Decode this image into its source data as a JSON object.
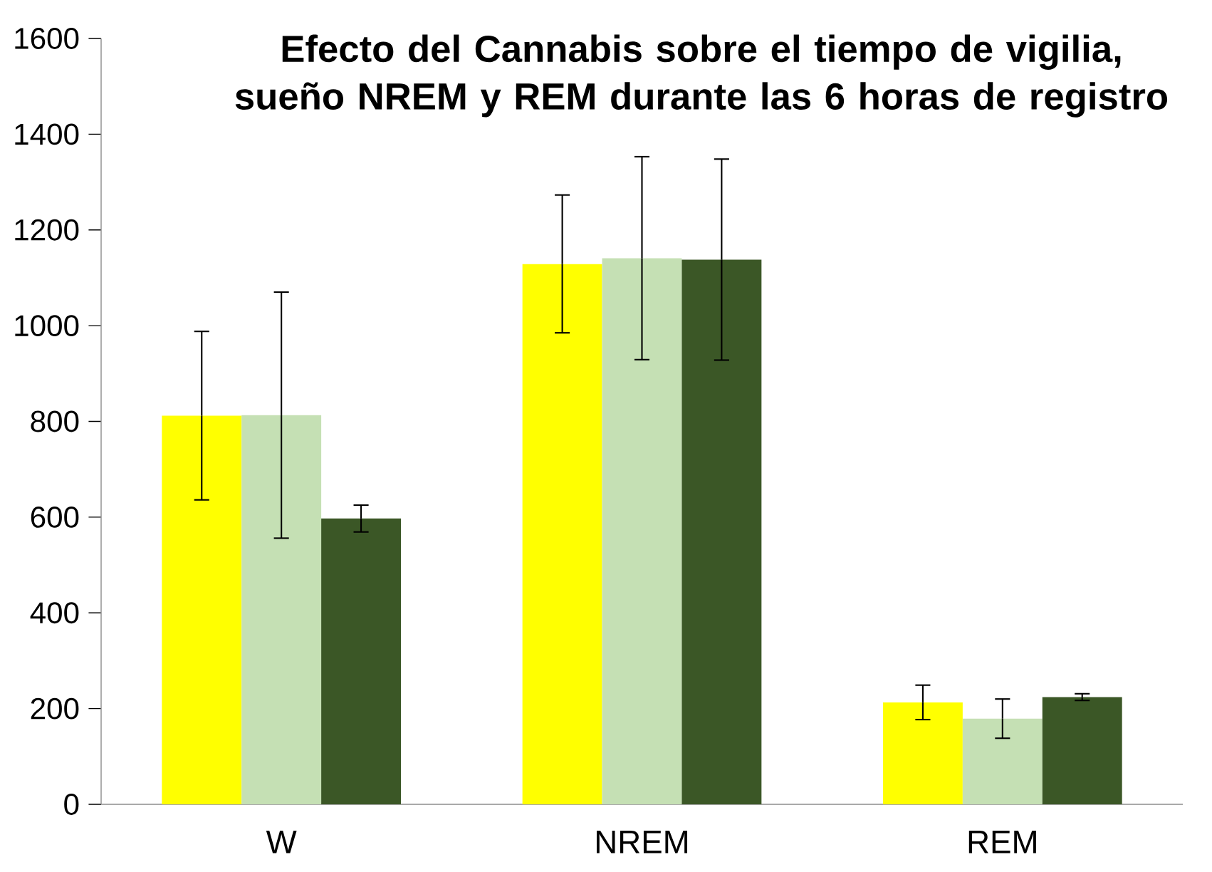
{
  "chart_data": {
    "type": "bar",
    "title": "Efecto del Cannabis sobre el tiempo de vigilia, sueño NREM y REM durante las 6 horas de registro",
    "categories": [
      "W",
      "NREM",
      "REM"
    ],
    "series": [
      {
        "color": "#ffff00",
        "values": [
          812,
          1129,
          213
        ],
        "errors": [
          176,
          144,
          36
        ]
      },
      {
        "color": "#c5e0b4",
        "values": [
          813,
          1141,
          179
        ],
        "errors": [
          257,
          212,
          41
        ]
      },
      {
        "color": "#3b5726",
        "values": [
          597,
          1138,
          224
        ],
        "errors": [
          28,
          210,
          7
        ]
      }
    ],
    "ylim": [
      0,
      1600
    ],
    "yticks": [
      0,
      200,
      400,
      600,
      800,
      1000,
      1200,
      1400,
      1600
    ]
  }
}
